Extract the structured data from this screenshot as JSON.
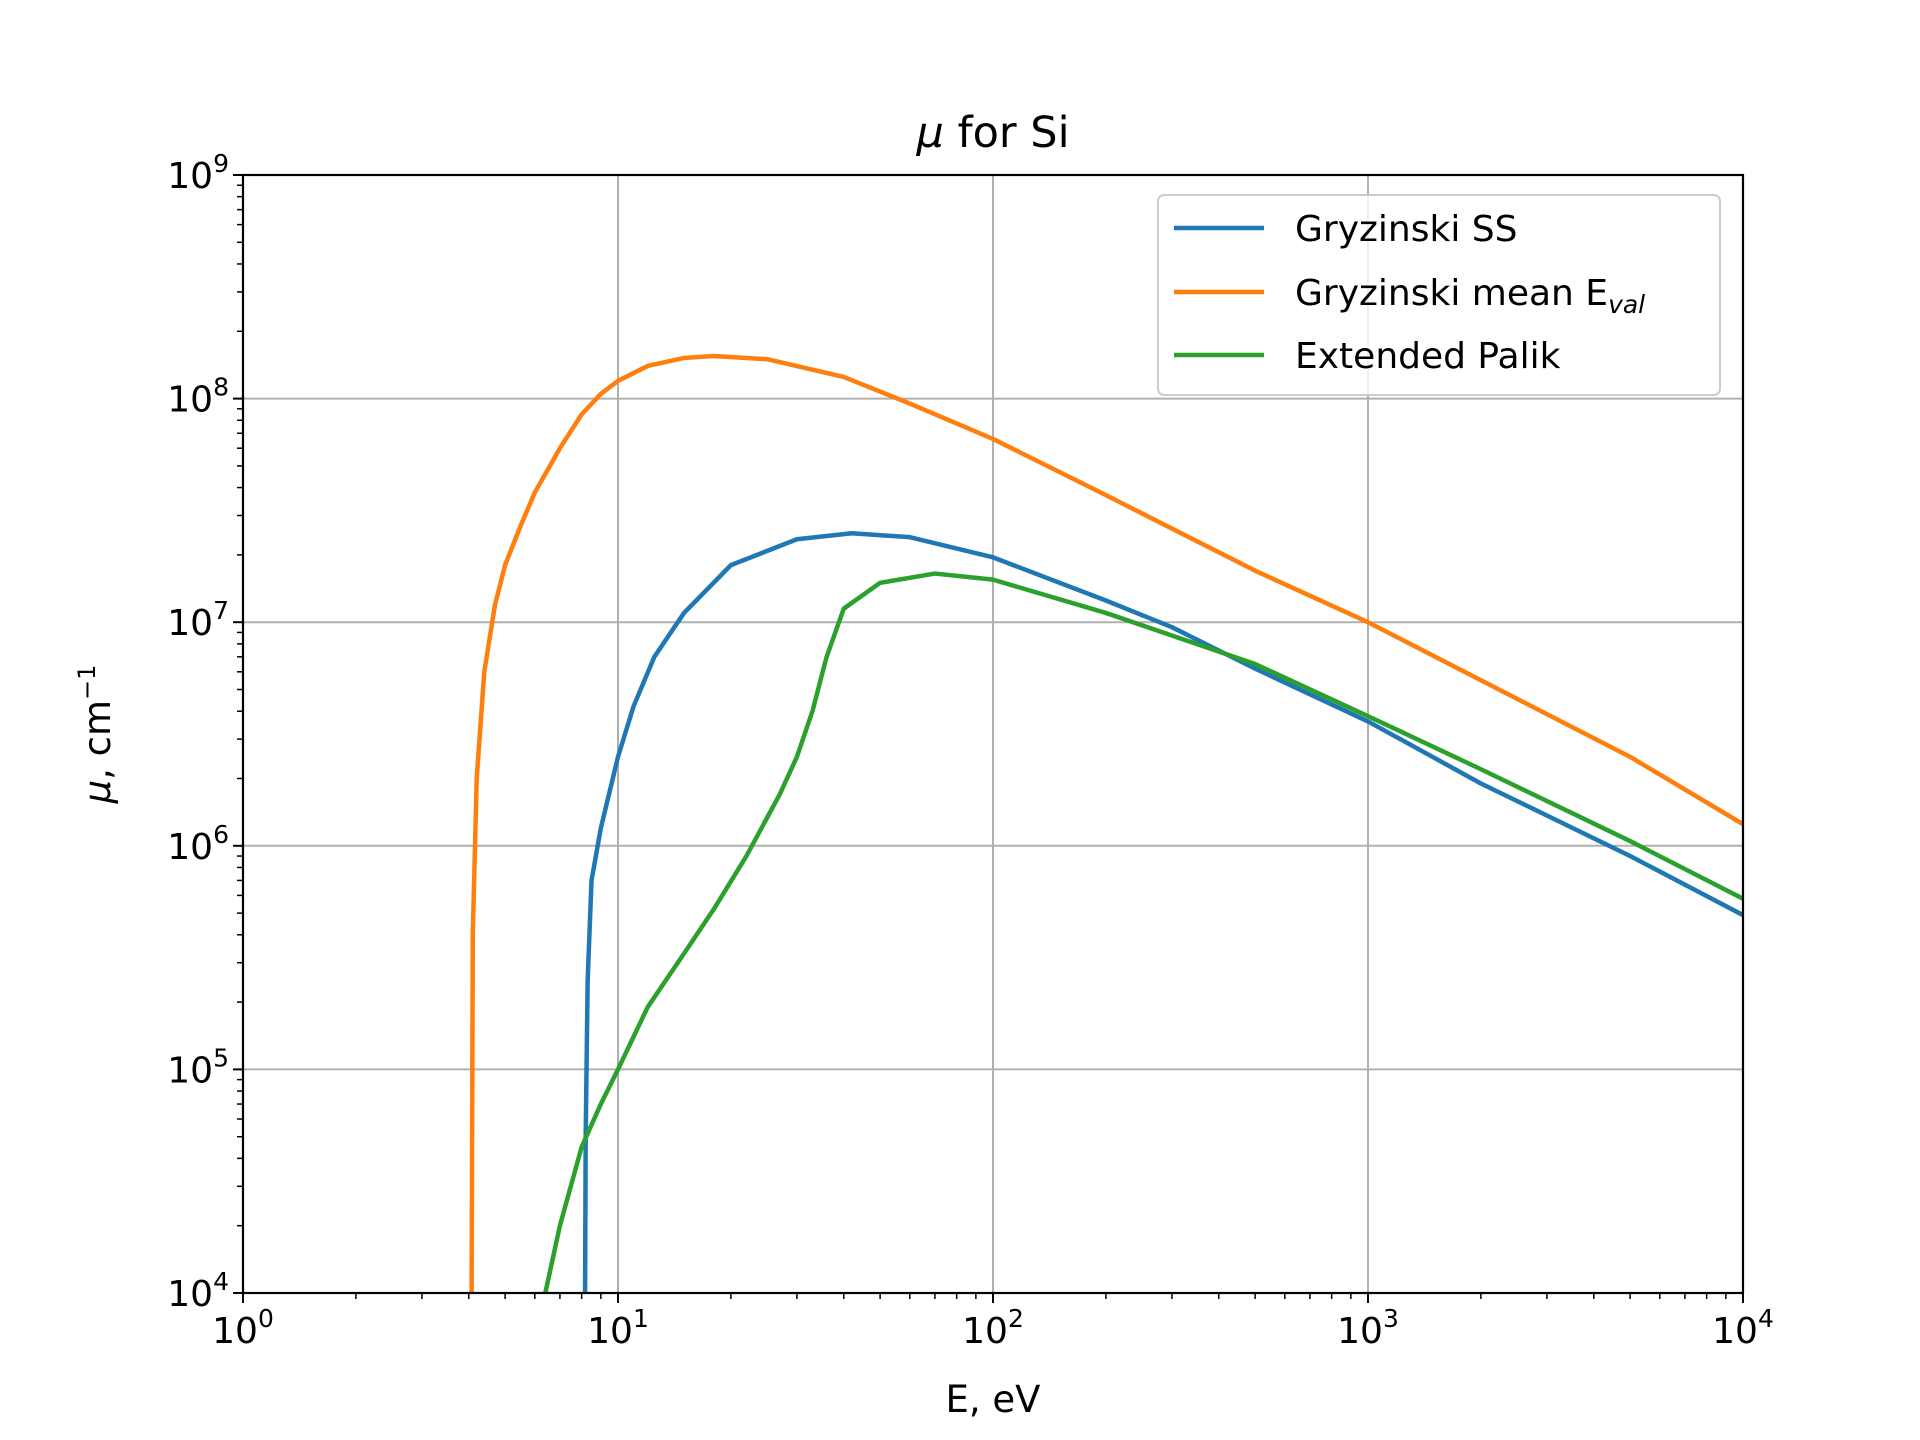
{
  "chart_data": {
    "type": "line",
    "title": {
      "symbol": "μ",
      "rest": " for Si"
    },
    "xlabel": "E, eV",
    "ylabel": {
      "symbol": "μ",
      "rest": ", cm",
      "exp": "−1"
    },
    "xscale": "log",
    "yscale": "log",
    "xlim": [
      1,
      10000
    ],
    "ylim": [
      10000,
      1000000000
    ],
    "xticks": [
      {
        "base": "10",
        "exp": "0"
      },
      {
        "base": "10",
        "exp": "1"
      },
      {
        "base": "10",
        "exp": "2"
      },
      {
        "base": "10",
        "exp": "3"
      },
      {
        "base": "10",
        "exp": "4"
      }
    ],
    "yticks": [
      {
        "base": "10",
        "exp": "4"
      },
      {
        "base": "10",
        "exp": "5"
      },
      {
        "base": "10",
        "exp": "6"
      },
      {
        "base": "10",
        "exp": "7"
      },
      {
        "base": "10",
        "exp": "8"
      },
      {
        "base": "10",
        "exp": "9"
      }
    ],
    "grid": true,
    "legend_position": "upper right",
    "series": [
      {
        "name": "Gryzinski SS",
        "color": "#1f77b4",
        "x": [
          8.17,
          8.2,
          8.3,
          8.5,
          9,
          10,
          11,
          12.5,
          15,
          20,
          30,
          42,
          60,
          100,
          200,
          300,
          500,
          1000,
          2000,
          5000,
          10000
        ],
        "y": [
          10000,
          50000,
          250000,
          700000,
          1200000,
          2500000,
          4200000,
          7000000,
          11000000,
          18000000,
          23500000,
          25000000,
          24000000,
          19500000,
          12500000,
          9500000,
          6200000,
          3600000,
          1900000,
          900000,
          490000
        ]
      },
      {
        "name": "Gryzinski mean E",
        "name_sub": "val",
        "color": "#ff7f0e",
        "x": [
          4.07,
          4.1,
          4.2,
          4.4,
          4.7,
          5,
          5.5,
          6,
          7,
          8,
          9,
          10,
          12,
          15,
          18,
          25,
          40,
          60,
          100,
          200,
          500,
          1000,
          2000,
          5000,
          10000
        ],
        "y": [
          10000,
          400000,
          2000000,
          6000000,
          12000000,
          18000000,
          27000000,
          38000000,
          60000000,
          85000000,
          105000000,
          120000000,
          140000000,
          152000000,
          155000000,
          150000000,
          125000000,
          95000000,
          66000000,
          37000000,
          17000000,
          10000000,
          5500000,
          2500000,
          1250000
        ]
      },
      {
        "name": "Extended Palik",
        "color": "#2ca02c",
        "x": [
          6.4,
          7,
          8,
          9,
          10,
          12,
          15,
          18,
          22,
          27,
          30,
          33,
          36,
          40,
          50,
          70,
          100,
          200,
          500,
          1000,
          2000,
          5000,
          10000
        ],
        "y": [
          10000,
          20000,
          45000,
          70000,
          100000,
          190000,
          330000,
          520000,
          900000,
          1700000,
          2500000,
          4000000,
          7000000,
          11500000,
          15000000,
          16500000,
          15500000,
          11000000,
          6500000,
          3800000,
          2200000,
          1050000,
          580000
        ]
      }
    ]
  }
}
